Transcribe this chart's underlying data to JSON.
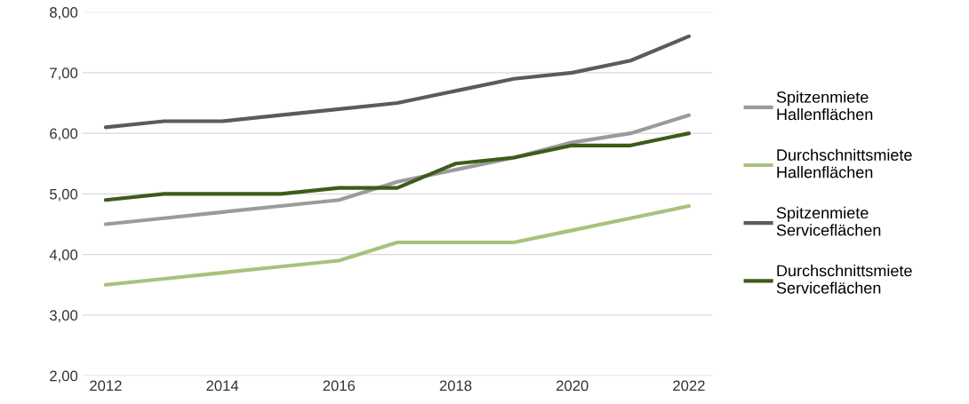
{
  "chart_data": {
    "type": "line",
    "x": [
      2012,
      2013,
      2014,
      2015,
      2016,
      2017,
      2018,
      2019,
      2020,
      2021,
      2022
    ],
    "series": [
      {
        "name": "Spitzenmiete\nHallenflächen",
        "color": "#9b9b9b",
        "values": [
          4.5,
          4.6,
          4.7,
          4.8,
          4.9,
          5.2,
          5.4,
          5.6,
          5.85,
          6.0,
          6.3
        ]
      },
      {
        "name": "Durchschnittsmiete\nHallenflächen",
        "color": "#a8c27c",
        "values": [
          3.5,
          3.6,
          3.7,
          3.8,
          3.9,
          4.2,
          4.2,
          4.2,
          4.4,
          4.6,
          4.8
        ]
      },
      {
        "name": "Spitzenmiete\nServiceflächen",
        "color": "#5a5b5d",
        "values": [
          6.1,
          6.2,
          6.2,
          6.3,
          6.4,
          6.5,
          6.7,
          6.9,
          7.0,
          7.2,
          7.6
        ]
      },
      {
        "name": "Durchschnittsmiete\nServiceflächen",
        "color": "#3d5c18",
        "values": [
          4.9,
          5.0,
          5.0,
          5.0,
          5.1,
          5.1,
          5.5,
          5.6,
          5.8,
          5.8,
          6.0
        ]
      }
    ],
    "xlim": [
      2011.6,
      2022.4
    ],
    "xticks": [
      2012,
      2014,
      2016,
      2018,
      2020,
      2022
    ],
    "ylim": [
      2,
      8
    ],
    "yticks": [
      {
        "value": 2,
        "label": "2,00"
      },
      {
        "value": 3,
        "label": "3,00"
      },
      {
        "value": 4,
        "label": "4,00"
      },
      {
        "value": 5,
        "label": "5,00"
      },
      {
        "value": 6,
        "label": "6,00"
      },
      {
        "value": 7,
        "label": "7,00"
      },
      {
        "value": 8,
        "label": "8,00"
      }
    ],
    "grid": "y",
    "legend": "right",
    "marker": "none",
    "line_style": "solid"
  }
}
